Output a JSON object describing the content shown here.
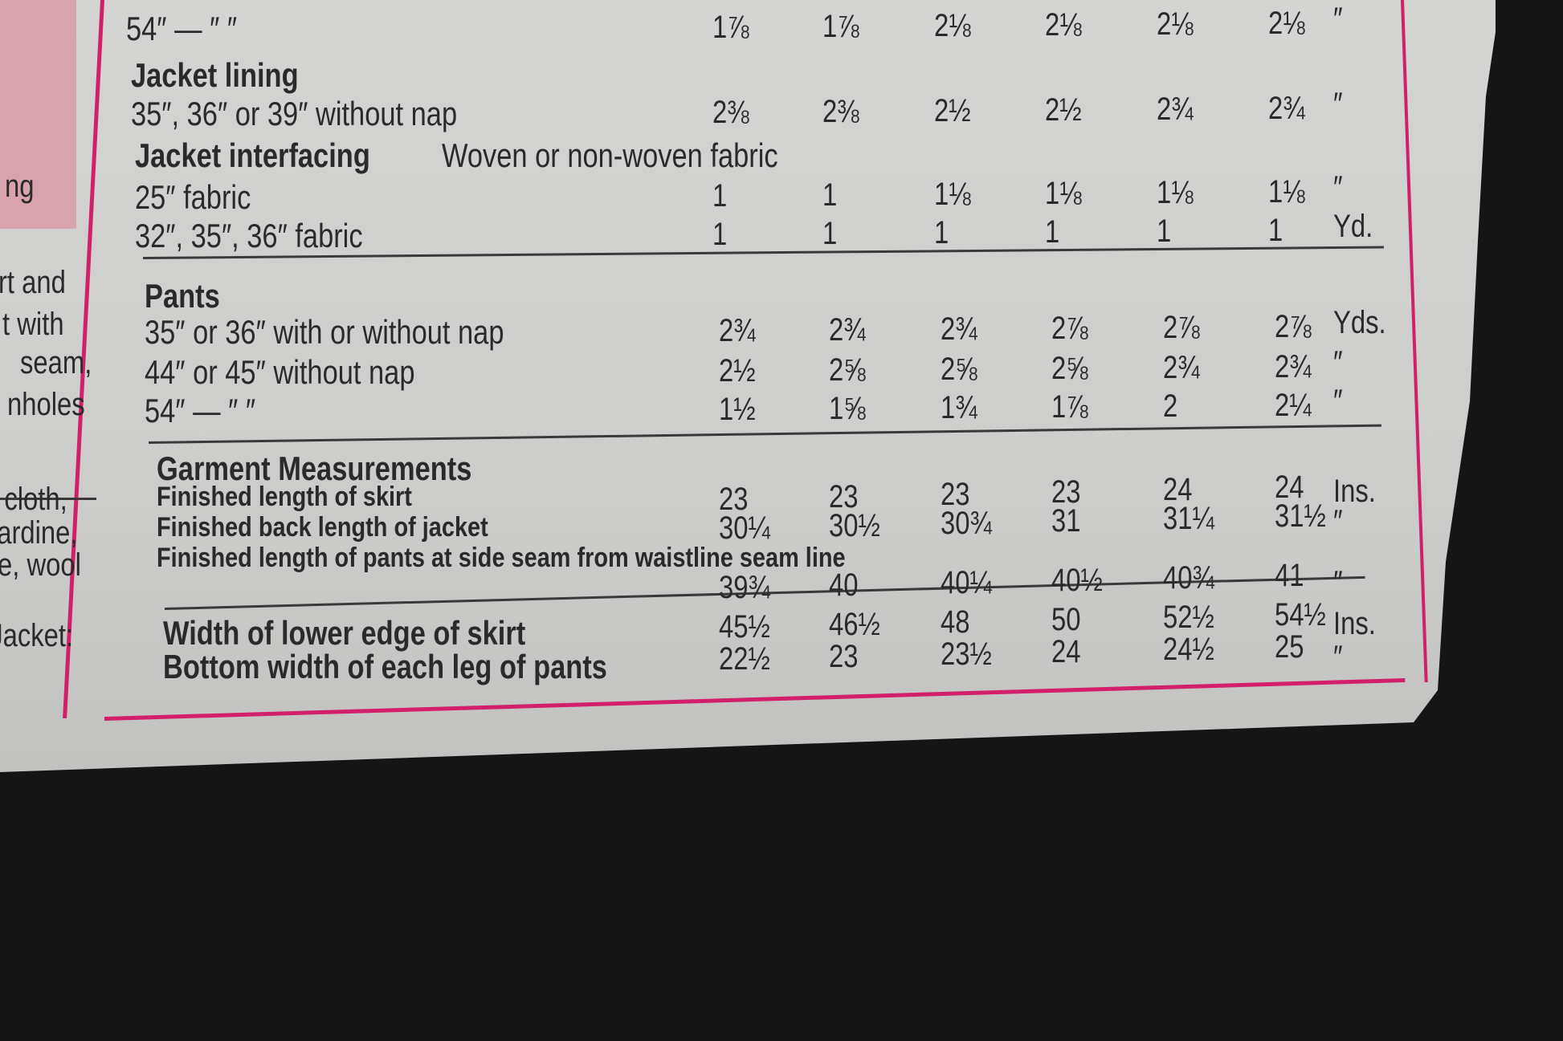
{
  "left_fragments": [
    "ng",
    "rt and",
    "t with",
    "seam,",
    "nholes",
    "e cloth,",
    "bardine,",
    "e, wool",
    ". Jacket:"
  ],
  "colors": {
    "border": "#d21f6a",
    "pink_panel": "#d9a3ae",
    "paper": "#d0d0ce",
    "ink": "#2a2a2a"
  },
  "sections": [
    {
      "heading": "",
      "rows": [
        {
          "label": "54″   —    ″   ″",
          "values": [
            "1⅞",
            "1⅞",
            "2⅛",
            "2⅛",
            "2⅛",
            "2⅛"
          ],
          "unit": "″"
        }
      ]
    },
    {
      "heading": "Jacket lining",
      "rows": [
        {
          "label": "35″, 36″ or 39″ without nap",
          "values": [
            "2⅜",
            "2⅜",
            "2½",
            "2½",
            "2¾",
            "2¾"
          ],
          "unit": "″"
        }
      ]
    },
    {
      "heading": "Jacket interfacing",
      "subheading": "Woven or non-woven fabric",
      "rows": [
        {
          "label": "25″ fabric",
          "values": [
            "1",
            "1",
            "1⅛",
            "1⅛",
            "1⅛",
            "1⅛"
          ],
          "unit": "″"
        },
        {
          "label": "32″, 35″, 36″ fabric",
          "values": [
            "1",
            "1",
            "1",
            "1",
            "1",
            "1"
          ],
          "unit": "Yd."
        }
      ]
    },
    {
      "heading": "Pants",
      "rows": [
        {
          "label": "35″ or 36″ with or without nap",
          "values": [
            "2¾",
            "2¾",
            "2¾",
            "2⅞",
            "2⅞",
            "2⅞"
          ],
          "unit": "Yds."
        },
        {
          "label": "44″ or 45″ without nap",
          "values": [
            "2½",
            "2⅝",
            "2⅝",
            "2⅝",
            "2¾",
            "2¾"
          ],
          "unit": "″"
        },
        {
          "label": "54″   —    ″   ″",
          "values": [
            "1½",
            "1⅝",
            "1¾",
            "1⅞",
            "2",
            "2¼"
          ],
          "unit": "″"
        }
      ]
    },
    {
      "heading": "Garment Measurements",
      "rows": [
        {
          "label": "Finished length of skirt",
          "values": [
            "23",
            "23",
            "23",
            "23",
            "24",
            "24"
          ],
          "unit": "Ins."
        },
        {
          "label": "Finished back length of jacket",
          "values": [
            "30¼",
            "30½",
            "30¾",
            "31",
            "31¼",
            "31½"
          ],
          "unit": "″"
        },
        {
          "label": "Finished length of pants at side seam from waistline seam line",
          "values": [
            "39¾",
            "40",
            "40¼",
            "40½",
            "40¾",
            "41"
          ],
          "unit": "″"
        },
        {
          "label": "Width of lower edge of skirt",
          "values": [
            "45½",
            "46½",
            "48",
            "50",
            "52½",
            "54½"
          ],
          "unit": "Ins."
        },
        {
          "label": "Bottom width of each leg of pants",
          "values": [
            "22½",
            "23",
            "23½",
            "24",
            "24½",
            "25"
          ],
          "unit": "″"
        }
      ]
    }
  ]
}
